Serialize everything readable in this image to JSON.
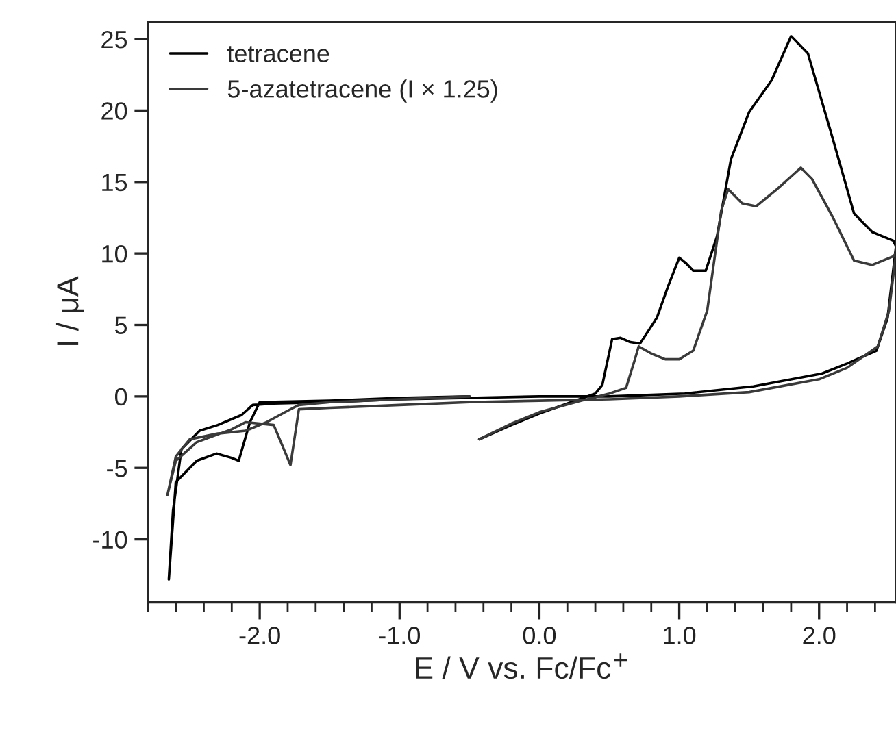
{
  "chart_data": {
    "type": "line",
    "xlabel": "E / V vs. Fc/Fc$^{+}$",
    "ylabel": "I / μA",
    "series": [
      {
        "name": "tetracene",
        "color": "#000000",
        "x": [
          -0.43,
          -0.2,
          0.0,
          0.2,
          0.4,
          0.45,
          0.52,
          0.58,
          0.65,
          0.72,
          0.84,
          0.92,
          1.0,
          1.05,
          1.1,
          1.19,
          1.27,
          1.37,
          1.5,
          1.66,
          1.8,
          1.92,
          2.09,
          2.25,
          2.38,
          2.53,
          2.55,
          2.49,
          2.41,
          2.2,
          2.02,
          1.53,
          1.04,
          0.5,
          0.0,
          -0.5,
          -1.0,
          -1.5,
          -1.9,
          -2.05,
          -2.13,
          -2.3,
          -2.43,
          -2.56,
          -2.62,
          -2.65,
          -2.6,
          -2.45,
          -2.31,
          -2.2,
          -2.15,
          -2.07,
          -2.0,
          -1.5,
          -1.0,
          -0.5
        ],
        "values": [
          -3.0,
          -2.0,
          -1.2,
          -0.5,
          0.2,
          0.8,
          4.0,
          4.1,
          3.8,
          3.7,
          5.5,
          7.7,
          9.7,
          9.3,
          8.8,
          8.8,
          11.2,
          16.6,
          19.9,
          22.1,
          25.2,
          24.0,
          18.3,
          12.8,
          11.5,
          10.9,
          10.5,
          5.5,
          3.2,
          2.3,
          1.6,
          0.7,
          0.2,
          0.0,
          0.0,
          -0.1,
          -0.2,
          -0.4,
          -0.5,
          -0.6,
          -1.3,
          -2.0,
          -2.4,
          -3.7,
          -8.0,
          -12.8,
          -6.0,
          -4.5,
          -4.0,
          -4.3,
          -4.5,
          -1.8,
          -0.4,
          -0.3,
          -0.1,
          0.0
        ]
      },
      {
        "name": "5-azatetracene (I × 1.25)",
        "color": "#3a3a3a",
        "x": [
          -0.43,
          -0.2,
          0.0,
          0.3,
          0.5,
          0.62,
          0.68,
          0.71,
          0.8,
          0.9,
          1.0,
          1.1,
          1.2,
          1.3,
          1.35,
          1.45,
          1.55,
          1.7,
          1.87,
          1.95,
          2.1,
          2.25,
          2.38,
          2.53,
          2.55,
          2.5,
          2.42,
          2.2,
          2.0,
          1.5,
          1.0,
          0.5,
          0.0,
          -0.5,
          -1.0,
          -1.5,
          -1.72,
          -1.78,
          -1.9,
          -2.1,
          -2.2,
          -2.45,
          -2.6,
          -2.66,
          -2.6,
          -2.5,
          -2.3,
          -2.1,
          -1.95,
          -1.8,
          -1.72,
          -1.5,
          -1.0,
          -0.5
        ],
        "values": [
          -3.0,
          -1.9,
          -1.1,
          -0.3,
          0.2,
          0.6,
          2.5,
          3.5,
          3.0,
          2.6,
          2.6,
          3.2,
          6.0,
          13.0,
          14.5,
          13.5,
          13.3,
          14.5,
          16.0,
          15.2,
          12.5,
          9.5,
          9.2,
          9.8,
          10.0,
          6.0,
          3.5,
          2.0,
          1.2,
          0.3,
          0.0,
          -0.2,
          -0.3,
          -0.4,
          -0.6,
          -0.8,
          -0.9,
          -4.8,
          -2.0,
          -1.8,
          -2.3,
          -3.2,
          -4.5,
          -6.9,
          -4.2,
          -3.0,
          -2.6,
          -2.4,
          -1.8,
          -1.0,
          -0.6,
          -0.4,
          -0.2,
          0.0
        ]
      }
    ],
    "xlim": [
      -2.8,
      2.55
    ],
    "ylim": [
      -14.4,
      26.2
    ],
    "xticks": [
      {
        "value": -2.8,
        "label": null
      },
      {
        "value": -2.6,
        "label": null
      },
      {
        "value": -2.4,
        "label": null
      },
      {
        "value": -2.2,
        "label": null
      },
      {
        "value": -2.0,
        "label": "-2.0"
      },
      {
        "value": -1.8,
        "label": null
      },
      {
        "value": -1.6,
        "label": null
      },
      {
        "value": -1.4,
        "label": null
      },
      {
        "value": -1.2,
        "label": null
      },
      {
        "value": -1.0,
        "label": "-1.0"
      },
      {
        "value": -0.8,
        "label": null
      },
      {
        "value": -0.6,
        "label": null
      },
      {
        "value": -0.4,
        "label": null
      },
      {
        "value": -0.2,
        "label": null
      },
      {
        "value": 0.0,
        "label": "0.0"
      },
      {
        "value": 0.2,
        "label": null
      },
      {
        "value": 0.4,
        "label": null
      },
      {
        "value": 0.6,
        "label": null
      },
      {
        "value": 0.8,
        "label": null
      },
      {
        "value": 1.0,
        "label": "1.0"
      },
      {
        "value": 1.2,
        "label": null
      },
      {
        "value": 1.4,
        "label": null
      },
      {
        "value": 1.6,
        "label": null
      },
      {
        "value": 1.8,
        "label": null
      },
      {
        "value": 2.0,
        "label": "2.0"
      },
      {
        "value": 2.2,
        "label": null
      },
      {
        "value": 2.4,
        "label": null
      }
    ],
    "yticks": [
      -10,
      -5,
      0,
      5,
      10,
      15,
      20,
      25
    ],
    "grid": false,
    "legend": "top left",
    "line_style": "solid",
    "marker": "none"
  }
}
